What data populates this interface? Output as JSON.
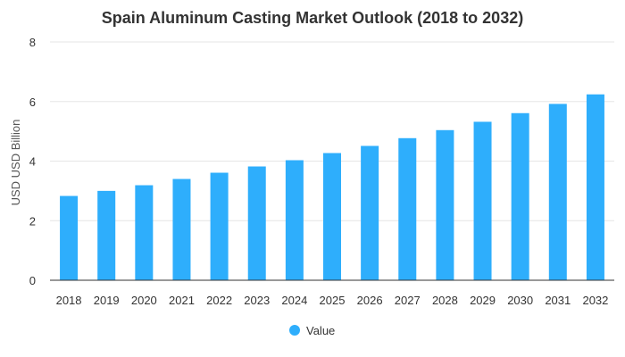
{
  "chart_data": {
    "type": "bar",
    "title": "Spain Aluminum Casting Market Outlook (2018 to 2032)",
    "xlabel": "",
    "ylabel": "USD USD Billion",
    "categories": [
      "2018",
      "2019",
      "2020",
      "2021",
      "2022",
      "2023",
      "2024",
      "2025",
      "2026",
      "2027",
      "2028",
      "2029",
      "2030",
      "2031",
      "2032"
    ],
    "series": [
      {
        "name": "Value",
        "color": "#2eaefc",
        "values": [
          2.83,
          3.0,
          3.19,
          3.4,
          3.61,
          3.82,
          4.03,
          4.27,
          4.51,
          4.77,
          5.04,
          5.32,
          5.61,
          5.92,
          6.24
        ]
      }
    ],
    "ylim": [
      0,
      8
    ],
    "yticks": [
      0,
      2,
      4,
      6,
      8
    ],
    "grid": true,
    "legend": "bottom-center"
  }
}
